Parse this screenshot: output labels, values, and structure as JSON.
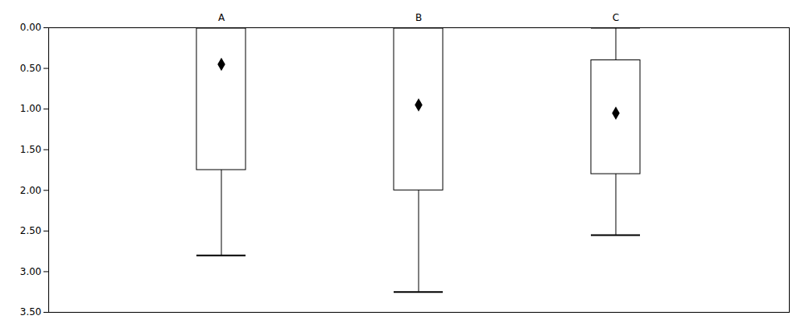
{
  "chart_data": {
    "type": "box",
    "categories": [
      "A",
      "B",
      "C"
    ],
    "q1": [
      0.0,
      0.0,
      0.4
    ],
    "q3": [
      1.75,
      2.0,
      1.8
    ],
    "whisker_top": [
      0.0,
      0.0,
      0.0
    ],
    "whisker_bot": [
      2.8,
      3.25,
      2.55
    ],
    "mean": [
      0.45,
      0.95,
      1.05
    ],
    "ylim": [
      3.5,
      0
    ],
    "yticks": [
      {
        "value": 0,
        "label": "0.00"
      },
      {
        "value": 0.5,
        "label": "0.50"
      },
      {
        "value": 1,
        "label": "1.00"
      },
      {
        "value": 1.5,
        "label": "1.50"
      },
      {
        "value": 2,
        "label": "2.00"
      },
      {
        "value": 2.5,
        "label": "2.50"
      },
      {
        "value": 3,
        "label": "3.00"
      },
      {
        "value": 3.5,
        "label": "3.50"
      }
    ]
  }
}
